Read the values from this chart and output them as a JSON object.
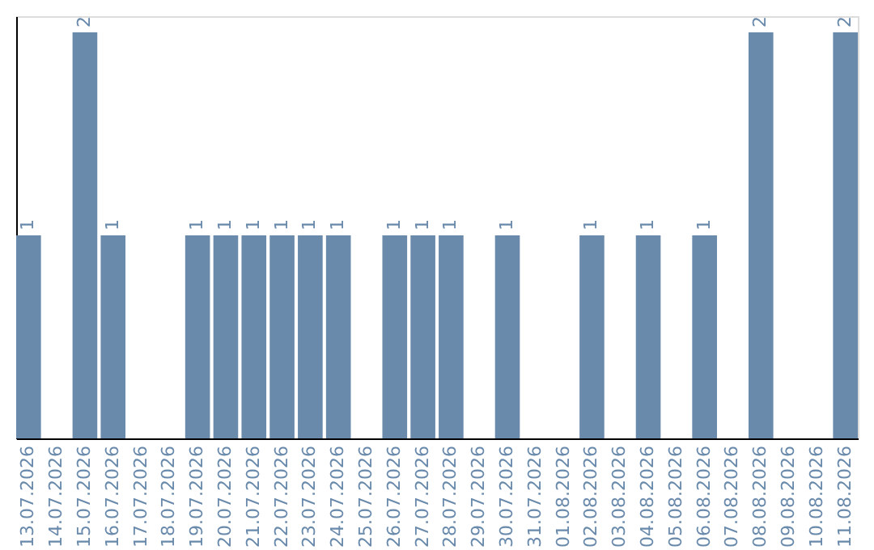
{
  "chart_data": {
    "type": "bar",
    "categories": [
      "13.07.2026",
      "14.07.2026",
      "15.07.2026",
      "16.07.2026",
      "17.07.2026",
      "18.07.2026",
      "19.07.2026",
      "20.07.2026",
      "21.07.2026",
      "22.07.2026",
      "23.07.2026",
      "24.07.2026",
      "25.07.2026",
      "26.07.2026",
      "27.07.2026",
      "28.07.2026",
      "29.07.2026",
      "30.07.2026",
      "31.07.2026",
      "01.08.2026",
      "02.08.2026",
      "03.08.2026",
      "04.08.2026",
      "05.08.2026",
      "06.08.2026",
      "07.08.2026",
      "08.08.2026",
      "09.08.2026",
      "10.08.2026",
      "11.08.2026"
    ],
    "values": [
      1,
      0,
      2,
      1,
      0,
      0,
      1,
      1,
      1,
      1,
      1,
      1,
      0,
      1,
      1,
      1,
      0,
      1,
      0,
      0,
      1,
      0,
      1,
      0,
      1,
      0,
      2,
      0,
      0,
      2
    ],
    "value_labels": [
      "1",
      null,
      "2",
      "1",
      null,
      null,
      "1",
      "1",
      "1",
      "1",
      "1",
      "1",
      null,
      "1",
      "1",
      "1",
      null,
      "1",
      null,
      null,
      "1",
      null,
      "1",
      null,
      "1",
      null,
      "2",
      null,
      null,
      "2"
    ],
    "color": "#6a8aab",
    "ylim": [
      0,
      2.08
    ],
    "tick_labels": "x",
    "grid": false
  }
}
